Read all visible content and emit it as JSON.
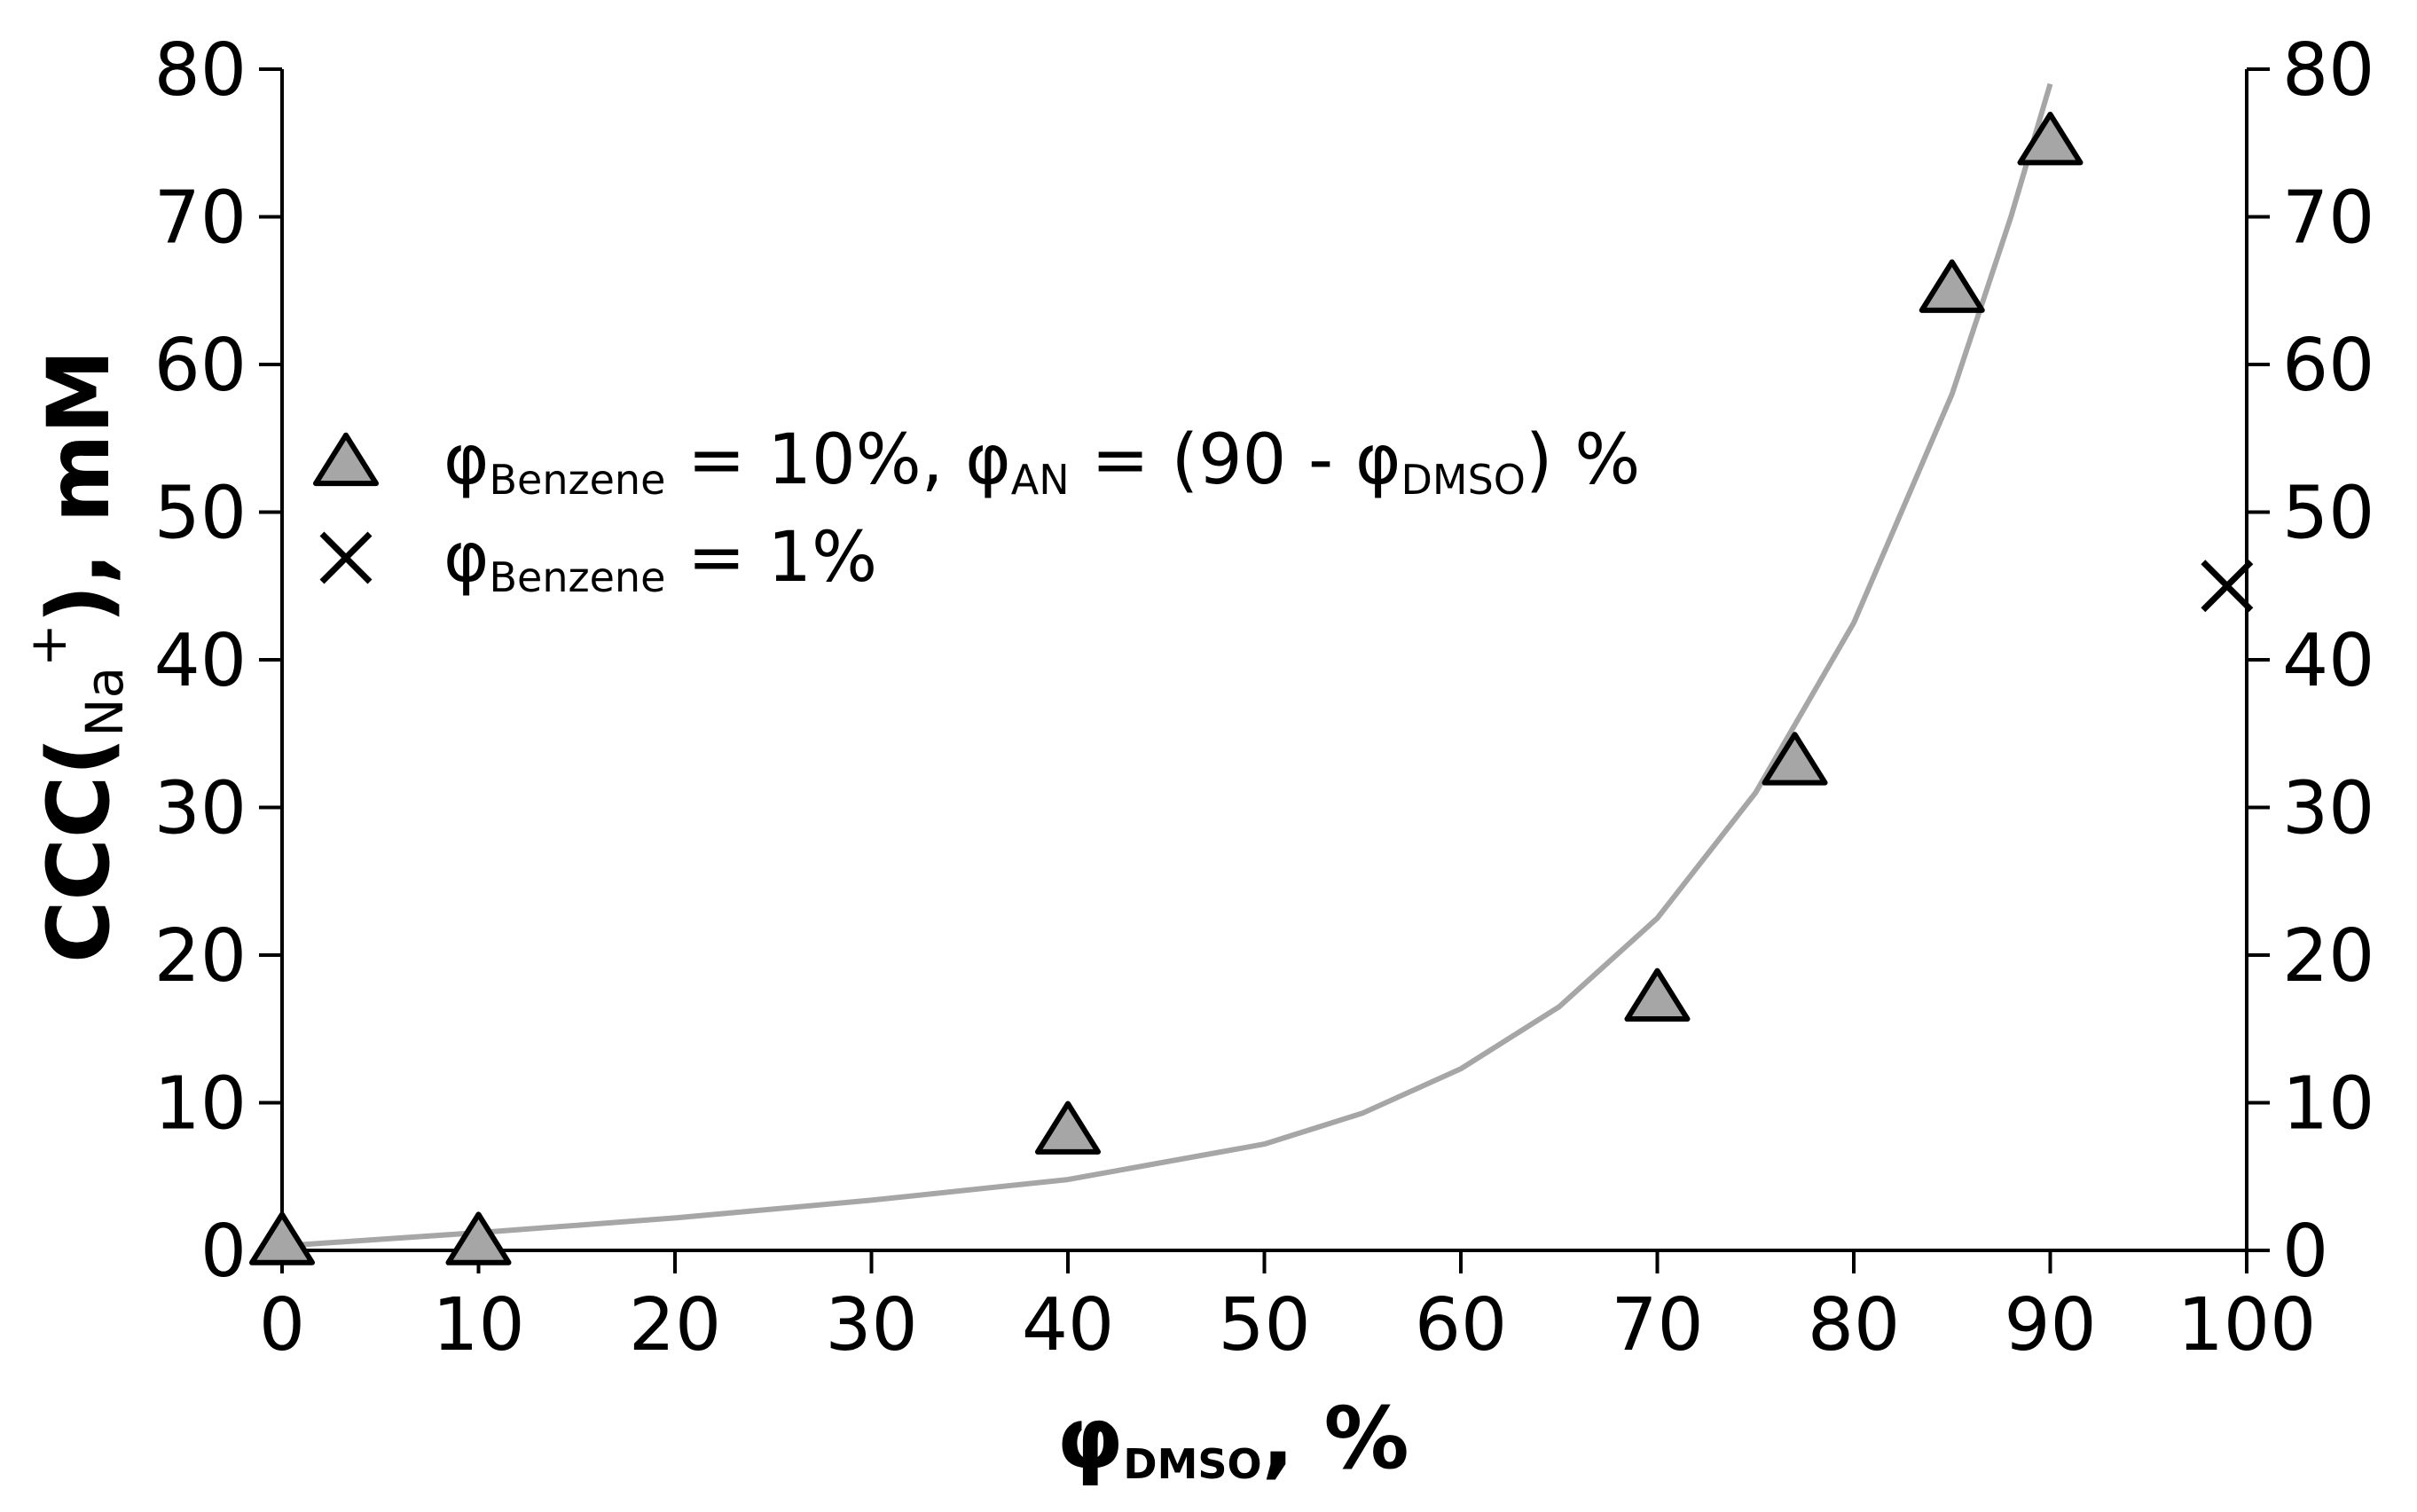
{
  "chart_data": {
    "type": "scatter",
    "title": "",
    "xlabel": {
      "main": "φ",
      "sub": "DMSO",
      "tail": ", %"
    },
    "ylabel": {
      "main": "CCC(",
      "sub": "Na",
      "sup": "+",
      "tail": "), mM"
    },
    "xlim": [
      0,
      100
    ],
    "ylim": [
      0,
      80
    ],
    "x_ticks": [
      0,
      10,
      20,
      30,
      40,
      50,
      60,
      70,
      80,
      90,
      100
    ],
    "y_ticks": [
      0,
      10,
      20,
      30,
      40,
      50,
      60,
      70,
      80
    ],
    "right_axis": {
      "ylim": [
        0,
        80
      ],
      "ticks": [
        0,
        10,
        20,
        30,
        40,
        50,
        60,
        70,
        80
      ]
    },
    "series": [
      {
        "marker": "triangle",
        "color": "#a6a6a6",
        "legend": {
          "a": "φ",
          "a_sub": "Benzene",
          "b": " = 10%, φ",
          "b_sub": "AN",
          "c": " = (90 - φ",
          "c_sub": "DMSO",
          "d": ") %"
        },
        "points": [
          {
            "x": 0,
            "y": 0.5
          },
          {
            "x": 10,
            "y": 0.5
          },
          {
            "x": 40,
            "y": 8
          },
          {
            "x": 70,
            "y": 17
          },
          {
            "x": 77,
            "y": 33
          },
          {
            "x": 85,
            "y": 65
          },
          {
            "x": 90,
            "y": 75
          }
        ]
      },
      {
        "marker": "cross",
        "color": "#000000",
        "legend": {
          "a": "φ",
          "a_sub": "Benzene",
          "b": " = 1%"
        },
        "points": [
          {
            "x": 99,
            "y": 45
          }
        ]
      }
    ],
    "fit_curve": {
      "color": "#a6a6a6",
      "points": [
        {
          "x": 0,
          "y": 0.3
        },
        {
          "x": 10,
          "y": 1.2
        },
        {
          "x": 20,
          "y": 2.2
        },
        {
          "x": 30,
          "y": 3.4
        },
        {
          "x": 40,
          "y": 4.8
        },
        {
          "x": 50,
          "y": 7.2
        },
        {
          "x": 55,
          "y": 9.3
        },
        {
          "x": 60,
          "y": 12.3
        },
        {
          "x": 65,
          "y": 16.5
        },
        {
          "x": 70,
          "y": 22.5
        },
        {
          "x": 75,
          "y": 31
        },
        {
          "x": 80,
          "y": 42.5
        },
        {
          "x": 85,
          "y": 58
        },
        {
          "x": 88,
          "y": 70
        },
        {
          "x": 90,
          "y": 79
        }
      ]
    },
    "grid": false,
    "legend_position": "upper-left"
  }
}
